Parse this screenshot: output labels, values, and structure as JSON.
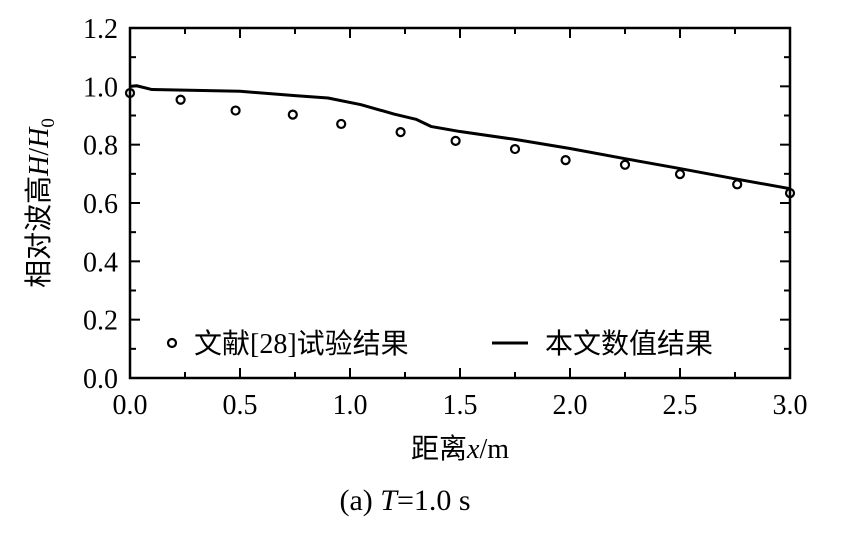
{
  "chart_data": {
    "type": "line",
    "title": "",
    "caption_prefix": "(a) ",
    "caption_var": "T",
    "caption_suffix": "=1.0 s",
    "xlabel_text": "距离",
    "xlabel_var": "x",
    "xlabel_unit": "/m",
    "ylabel_text": "相对波高",
    "ylabel_var1": "H",
    "ylabel_sep": "/",
    "ylabel_var2": "H",
    "ylabel_sub": "0",
    "xlim": [
      0,
      3.0
    ],
    "ylim": [
      0,
      1.2
    ],
    "xticks": [
      "0.0",
      "0.5",
      "1.0",
      "1.5",
      "2.0",
      "2.5",
      "3.0"
    ],
    "yticks": [
      "0.0",
      "0.2",
      "0.4",
      "0.6",
      "0.8",
      "1.0",
      "1.2"
    ],
    "grid": false,
    "legend_position": "bottom",
    "series": [
      {
        "name": "文献[28]试验结果",
        "type": "scatter",
        "marker": "open-circle",
        "x": [
          0,
          0.23,
          0.48,
          0.74,
          0.96,
          1.23,
          1.48,
          1.75,
          1.98,
          2.25,
          2.5,
          2.76,
          3.0
        ],
        "y": [
          0.977,
          0.954,
          0.917,
          0.903,
          0.871,
          0.843,
          0.813,
          0.785,
          0.747,
          0.731,
          0.699,
          0.664,
          0.634
        ]
      },
      {
        "name": "本文数值结果",
        "type": "line",
        "x": [
          0,
          0.03,
          0.1,
          0.5,
          0.75,
          0.9,
          1.05,
          1.2,
          1.3,
          1.37,
          1.5,
          1.75,
          2.0,
          2.25,
          2.5,
          2.75,
          3.0
        ],
        "y": [
          1.0,
          1.002,
          0.989,
          0.983,
          0.968,
          0.96,
          0.937,
          0.905,
          0.887,
          0.862,
          0.845,
          0.818,
          0.787,
          0.752,
          0.718,
          0.683,
          0.649
        ]
      }
    ]
  }
}
